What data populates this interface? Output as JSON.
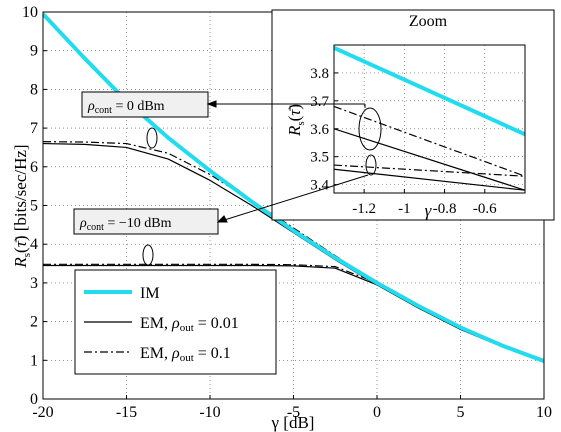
{
  "chart_data": [
    {
      "type": "line",
      "xlabel": "γ [dB]",
      "ylabel": "R_s(τ̄) [bits/sec/Hz]",
      "xlim": [
        -20,
        10
      ],
      "ylim": [
        0,
        10
      ],
      "xticks": [
        "-20",
        "-15",
        "-10",
        "-5",
        "0",
        "5",
        "10"
      ],
      "yticks": [
        "0",
        "1",
        "2",
        "3",
        "4",
        "5",
        "6",
        "7",
        "8",
        "9",
        "10"
      ],
      "grid": true,
      "legend_position": "bottom-left",
      "legend": [
        "IM",
        "EM, ρout = 0.01",
        "EM, ρout = 0.1"
      ],
      "annotations": [
        "ρcont = 0 dBm",
        "ρcont = −10 dBm"
      ],
      "x": [
        -20,
        -17.5,
        -15,
        -12.5,
        -10,
        -7.5,
        -5,
        -2.5,
        0,
        2.5,
        5,
        7.5,
        10
      ],
      "series": [
        {
          "name": "IM",
          "style": "thick-cyan",
          "values": [
            9.95,
            8.8,
            7.7,
            6.75,
            5.9,
            5.1,
            4.35,
            3.65,
            3.0,
            2.4,
            1.85,
            1.38,
            0.98
          ]
        },
        {
          "name": "EM, ρout = 0.01",
          "group": "ρcont = 0 dBm",
          "style": "solid",
          "values": [
            6.6,
            6.58,
            6.5,
            6.2,
            5.65,
            5.0,
            4.3,
            3.6,
            2.95,
            2.35,
            1.8,
            1.35,
            0.97
          ]
        },
        {
          "name": "EM, ρout = 0.1",
          "group": "ρcont = 0 dBm",
          "style": "dashdot",
          "values": [
            6.65,
            6.64,
            6.6,
            6.35,
            5.8,
            5.12,
            4.42,
            3.7,
            3.0,
            2.38,
            1.82,
            1.36,
            0.97
          ]
        },
        {
          "name": "EM, ρout = 0.01",
          "group": "ρcont = −10 dBm",
          "style": "solid",
          "values": [
            3.45,
            3.45,
            3.45,
            3.45,
            3.45,
            3.45,
            3.44,
            3.38,
            2.95,
            2.35,
            1.8,
            1.35,
            0.97
          ]
        },
        {
          "name": "EM, ρout = 0.1",
          "group": "ρcont = −10 dBm",
          "style": "dashdot",
          "values": [
            3.48,
            3.48,
            3.48,
            3.48,
            3.48,
            3.48,
            3.47,
            3.42,
            3.0,
            2.38,
            1.82,
            1.36,
            0.97
          ]
        }
      ]
    },
    {
      "type": "line",
      "title": "Zoom",
      "xlabel": "γ",
      "ylabel": "R_s(τ̄)",
      "xlim": [
        -1.35,
        -0.4
      ],
      "ylim": [
        3.37,
        3.9
      ],
      "xticks": [
        "-1.2",
        "-1",
        "-0.8",
        "-0.6"
      ],
      "yticks": [
        "3.4",
        "3.5",
        "3.6",
        "3.7",
        "3.8"
      ],
      "grid": true,
      "x": [
        -1.35,
        -0.4
      ],
      "series": [
        {
          "name": "IM",
          "style": "thick-cyan",
          "values": [
            3.89,
            3.58
          ]
        },
        {
          "name": "EM, ρout = 0.01",
          "group": "ρcont = 0 dBm",
          "style": "solid",
          "values": [
            3.6,
            3.38
          ]
        },
        {
          "name": "EM, ρout = 0.1",
          "group": "ρcont = 0 dBm",
          "style": "dashdot",
          "values": [
            3.68,
            3.43
          ]
        },
        {
          "name": "EM, ρout = 0.01",
          "group": "ρcont = −10 dBm",
          "style": "solid",
          "values": [
            3.455,
            3.38
          ]
        },
        {
          "name": "EM, ρout = 0.1",
          "group": "ρcont = −10 dBm",
          "style": "dashdot",
          "values": [
            3.47,
            3.43
          ]
        }
      ]
    }
  ],
  "colors": {
    "im": "#21dcef",
    "em": "#000000",
    "grid": "#555555",
    "box_fill": "#f0f0f0"
  }
}
